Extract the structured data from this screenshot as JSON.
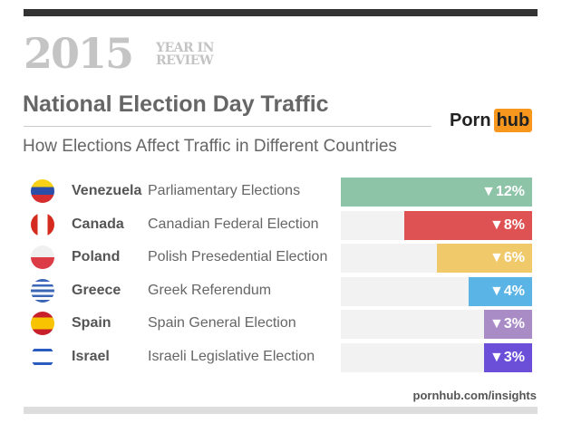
{
  "header": {
    "year": "2015",
    "year_in": "YEAR IN",
    "review": "REVIEW",
    "title": "National Election Day Traffic",
    "subtitle": "How Elections Affect Traffic in Different Countries",
    "logo_porn": "Porn",
    "logo_hub": "hub"
  },
  "footer": {
    "url": "pornhub.com/insights"
  },
  "chart_data": {
    "type": "bar",
    "orientation": "horizontal",
    "xlim": [
      0,
      12
    ],
    "categories": [
      "Venezuela",
      "Canada",
      "Poland",
      "Greece",
      "Spain",
      "Israel"
    ],
    "elections": [
      "Parliamentary Elections",
      "Canadian Federal Election",
      "Polish Presedential Election",
      "Greek Referendum",
      "Spain General Election",
      "Israeli Legislative Election"
    ],
    "values": [
      -12,
      -8,
      -6,
      -4,
      -3,
      -3
    ],
    "labels": [
      "▼12%",
      "▼8%",
      "▼6%",
      "▼4%",
      "▼3%",
      "▼3%"
    ],
    "colors": [
      "#8dc3a7",
      "#de5253",
      "#f0c96b",
      "#5ab4e5",
      "#a98cc5",
      "#6b4fd8"
    ],
    "flags": [
      "venezuela-flag",
      "canada-flag",
      "poland-flag",
      "greece-flag",
      "spain-flag",
      "israel-flag"
    ]
  }
}
